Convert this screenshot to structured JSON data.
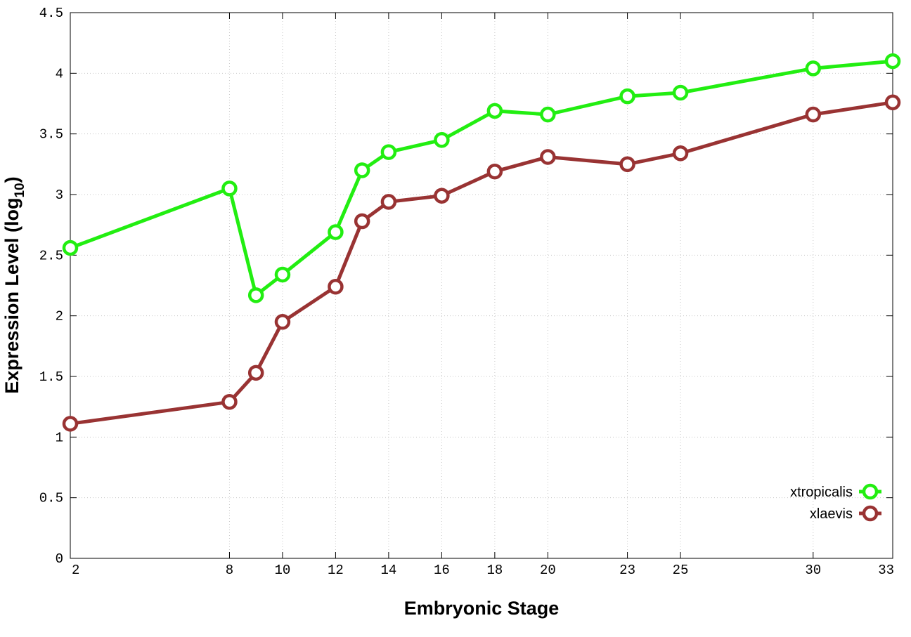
{
  "chart_data": {
    "type": "line",
    "xlabel": "Embryonic Stage",
    "ylabel_main": "Expression Level (log",
    "ylabel_sub": "10",
    "ylabel_end": ")",
    "x_ticks": [
      2,
      8,
      10,
      12,
      14,
      16,
      18,
      20,
      23,
      25,
      30,
      33
    ],
    "x_tick_labels": [
      "2",
      "8",
      "10",
      "12",
      "14",
      "16",
      "18",
      "20",
      "23",
      "25",
      "30",
      "33"
    ],
    "y_ticks": [
      0,
      0.5,
      1,
      1.5,
      2,
      2.5,
      3,
      3.5,
      4,
      4.5
    ],
    "y_tick_labels": [
      "0",
      "0.5",
      "1",
      "1.5",
      "2",
      "2.5",
      "3",
      "3.5",
      "4",
      "4.5"
    ],
    "xlim": [
      2,
      33
    ],
    "ylim": [
      0,
      4.5
    ],
    "grid": true,
    "legend_position": "bottom-right",
    "x": [
      2,
      8,
      9,
      10,
      12,
      13,
      14,
      16,
      18,
      20,
      23,
      25,
      30,
      33
    ],
    "series": [
      {
        "name": "xtropicalis",
        "color": "#22ee11",
        "values": [
          2.56,
          3.05,
          2.17,
          2.34,
          2.69,
          3.2,
          3.35,
          3.45,
          3.69,
          3.66,
          3.81,
          3.84,
          4.04,
          4.1
        ]
      },
      {
        "name": "xlaevis",
        "color": "#993333",
        "values": [
          1.11,
          1.29,
          1.53,
          1.95,
          2.24,
          2.78,
          2.94,
          2.99,
          3.19,
          3.31,
          3.25,
          3.34,
          3.66,
          3.76
        ]
      }
    ]
  }
}
